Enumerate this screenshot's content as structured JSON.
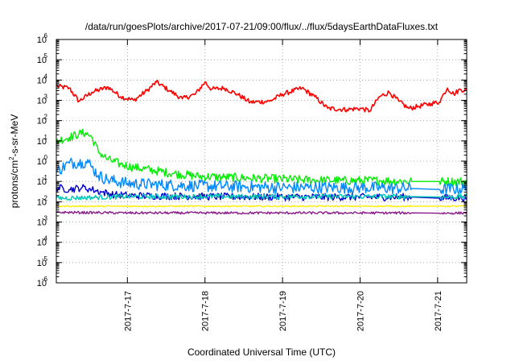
{
  "chart_data": {
    "type": "line",
    "title": "/data/run/goesPlots/archive/2017-07-21/09:00/flux/../flux/5daysEarthDataFluxes.txt",
    "xlabel": "Coordinated Universal Time (UTC)",
    "ylabel": "protons/cm2-s-sr-MeV",
    "ylabel_parts": {
      "before": "protons/cm",
      "sup": "2",
      "after": "-s-sr-MeV"
    },
    "y_scale": "log",
    "ylim": [
      1e-06,
      1000000.0
    ],
    "xlim": [
      "2017-07-16T02:00",
      "2017-07-21T09:00"
    ],
    "x_ticks": [
      {
        "label": "2017-7-17",
        "t": "2017-07-17T00:00"
      },
      {
        "label": "2017-7-18",
        "t": "2017-07-18T00:00"
      },
      {
        "label": "2017-7-19",
        "t": "2017-07-19T00:00"
      },
      {
        "label": "2017-7-20",
        "t": "2017-07-20T00:00"
      },
      {
        "label": "2017-7-21",
        "t": "2017-07-21T00:00"
      }
    ],
    "y_ticks": [
      {
        "base": "10",
        "exp": "-6"
      },
      {
        "base": "10",
        "exp": "-5"
      },
      {
        "base": "10",
        "exp": "-4"
      },
      {
        "base": "10",
        "exp": "-3"
      },
      {
        "base": "10",
        "exp": "-2"
      },
      {
        "base": "10",
        "exp": "-1"
      },
      {
        "base": "10",
        "exp": "0"
      },
      {
        "base": "10",
        "exp": "1"
      },
      {
        "base": "10",
        "exp": "2"
      },
      {
        "base": "10",
        "exp": "3"
      },
      {
        "base": "10",
        "exp": "4"
      },
      {
        "base": "10",
        "exp": "5"
      },
      {
        "base": "10",
        "exp": "6"
      }
    ],
    "grid": true,
    "legend": "none",
    "data_gap": {
      "start": "2017-07-20T16:00",
      "end": "2017-07-21T00:30"
    },
    "series": [
      {
        "color": "#ff0000",
        "points": [
          [
            "2017-07-16T02:00",
            5000
          ],
          [
            "2017-07-16T06:00",
            4000
          ],
          [
            "2017-07-16T09:00",
            900
          ],
          [
            "2017-07-16T13:00",
            2500
          ],
          [
            "2017-07-16T18:00",
            4500
          ],
          [
            "2017-07-16T22:00",
            1500
          ],
          [
            "2017-07-17T02:00",
            1000
          ],
          [
            "2017-07-17T06:00",
            3000
          ],
          [
            "2017-07-17T09:00",
            8000
          ],
          [
            "2017-07-17T13:00",
            3000
          ],
          [
            "2017-07-17T17:00",
            1200
          ],
          [
            "2017-07-17T21:00",
            2000
          ],
          [
            "2017-07-18T00:00",
            8000
          ],
          [
            "2017-07-18T02:00",
            3500
          ],
          [
            "2017-07-18T06:00",
            4000
          ],
          [
            "2017-07-18T10:00",
            2000
          ],
          [
            "2017-07-18T14:00",
            800
          ],
          [
            "2017-07-18T20:00",
            900
          ],
          [
            "2017-07-19T00:00",
            2000
          ],
          [
            "2017-07-19T06:00",
            4000
          ],
          [
            "2017-07-19T10:00",
            1500
          ],
          [
            "2017-07-19T14:00",
            400
          ],
          [
            "2017-07-19T20:00",
            350
          ],
          [
            "2017-07-20T00:00",
            400
          ],
          [
            "2017-07-20T03:00",
            300
          ],
          [
            "2017-07-20T06:00",
            1500
          ],
          [
            "2017-07-20T09:00",
            2500
          ],
          [
            "2017-07-20T12:00",
            900
          ],
          [
            "2017-07-20T15:00",
            400
          ],
          [
            "2017-07-20T18:00",
            500
          ],
          [
            "2017-07-20T22:00",
            700
          ],
          [
            "2017-07-21T00:30",
            800
          ],
          [
            "2017-07-21T02:00",
            2200
          ],
          [
            "2017-07-21T03:00",
            4000
          ],
          [
            "2017-07-21T05:00",
            2000
          ],
          [
            "2017-07-21T07:00",
            3500
          ],
          [
            "2017-07-21T09:00",
            3000
          ]
        ]
      },
      {
        "color": "#00ee00",
        "points": [
          [
            "2017-07-16T02:00",
            10
          ],
          [
            "2017-07-16T06:00",
            15
          ],
          [
            "2017-07-16T09:00",
            22
          ],
          [
            "2017-07-16T11:00",
            25
          ],
          [
            "2017-07-16T13:00",
            15
          ],
          [
            "2017-07-16T15:00",
            3
          ],
          [
            "2017-07-16T18:00",
            1.2
          ],
          [
            "2017-07-16T22:00",
            0.7
          ],
          [
            "2017-07-17T02:00",
            0.5
          ],
          [
            "2017-07-17T08:00",
            0.35
          ],
          [
            "2017-07-17T14:00",
            0.25
          ],
          [
            "2017-07-17T22:00",
            0.18
          ],
          [
            "2017-07-18T06:00",
            0.16
          ],
          [
            "2017-07-18T18:00",
            0.14
          ],
          [
            "2017-07-19T06:00",
            0.12
          ],
          [
            "2017-07-19T18:00",
            0.11
          ],
          [
            "2017-07-20T06:00",
            0.11
          ],
          [
            "2017-07-20T16:00",
            0.1
          ],
          [
            "2017-07-21T00:30",
            0.1
          ],
          [
            "2017-07-21T09:00",
            0.1
          ]
        ]
      },
      {
        "color": "#0088ff",
        "points": [
          [
            "2017-07-16T02:00",
            0.3
          ],
          [
            "2017-07-16T06:00",
            0.8
          ],
          [
            "2017-07-16T10:00",
            0.9
          ],
          [
            "2017-07-16T12:00",
            0.85
          ],
          [
            "2017-07-16T13:00",
            0.5
          ],
          [
            "2017-07-16T15:00",
            0.2
          ],
          [
            "2017-07-16T18:00",
            0.12
          ],
          [
            "2017-07-17T00:00",
            0.08
          ],
          [
            "2017-07-17T08:00",
            0.07
          ],
          [
            "2017-07-17T22:00",
            0.06
          ],
          [
            "2017-07-18T12:00",
            0.055
          ],
          [
            "2017-07-19T00:00",
            0.05
          ],
          [
            "2017-07-20T00:00",
            0.05
          ],
          [
            "2017-07-20T16:00",
            0.045
          ],
          [
            "2017-07-21T00:30",
            0.04
          ],
          [
            "2017-07-21T09:00",
            0.045
          ]
        ]
      },
      {
        "color": "#0000cc",
        "points": [
          [
            "2017-07-16T02:00",
            0.05
          ],
          [
            "2017-07-16T06:00",
            0.04
          ],
          [
            "2017-07-16T10:00",
            0.05
          ],
          [
            "2017-07-16T13:00",
            0.04
          ],
          [
            "2017-07-16T16:00",
            0.03
          ],
          [
            "2017-07-16T20:00",
            0.022
          ],
          [
            "2017-07-17T02:00",
            0.02
          ],
          [
            "2017-07-18T00:00",
            0.018
          ],
          [
            "2017-07-19T00:00",
            0.017
          ],
          [
            "2017-07-20T00:00",
            0.017
          ],
          [
            "2017-07-20T16:00",
            0.017
          ],
          [
            "2017-07-21T00:30",
            0.015
          ],
          [
            "2017-07-21T09:00",
            0.016
          ]
        ]
      },
      {
        "color": "#00c8b4",
        "points": [
          [
            "2017-07-16T02:00",
            0.015
          ],
          [
            "2017-07-16T12:00",
            0.016
          ],
          [
            "2017-07-17T00:00",
            0.018
          ],
          [
            "2017-07-18T00:00",
            0.018
          ],
          [
            "2017-07-19T00:00",
            0.018
          ],
          [
            "2017-07-20T00:00",
            0.018
          ],
          [
            "2017-07-20T16:00",
            0.018
          ],
          [
            "2017-07-21T00:30",
            0.017
          ],
          [
            "2017-07-21T09:00",
            0.018
          ]
        ]
      },
      {
        "color": "#ffee00",
        "points": [
          [
            "2017-07-16T02:00",
            0.006
          ],
          [
            "2017-07-17T00:00",
            0.006
          ],
          [
            "2017-07-18T00:00",
            0.006
          ],
          [
            "2017-07-19T00:00",
            0.006
          ],
          [
            "2017-07-20T00:00",
            0.006
          ],
          [
            "2017-07-20T16:00",
            0.006
          ],
          [
            "2017-07-21T00:30",
            0.006
          ],
          [
            "2017-07-21T09:00",
            0.006
          ]
        ]
      },
      {
        "color": "#8b1a89",
        "points": [
          [
            "2017-07-16T02:00",
            0.003
          ],
          [
            "2017-07-17T00:00",
            0.0028
          ],
          [
            "2017-07-18T00:00",
            0.0028
          ],
          [
            "2017-07-19T00:00",
            0.0028
          ],
          [
            "2017-07-20T00:00",
            0.0028
          ],
          [
            "2017-07-20T16:00",
            0.0028
          ],
          [
            "2017-07-21T00:30",
            0.0027
          ],
          [
            "2017-07-21T09:00",
            0.0028
          ]
        ]
      }
    ]
  }
}
